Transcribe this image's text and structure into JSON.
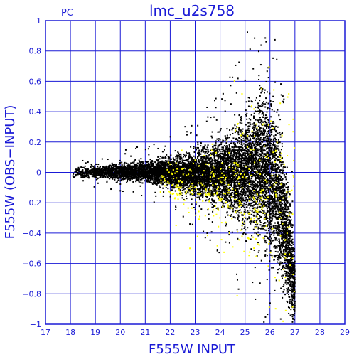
{
  "chart_data": {
    "type": "scatter",
    "title": "lmc_u2s758",
    "corner_label": "PC",
    "xlabel": "F555W INPUT",
    "ylabel": "F555W (OBS−INPUT)",
    "xlim": [
      17,
      29
    ],
    "ylim": [
      -1,
      1
    ],
    "x_ticks": [
      17,
      18,
      19,
      20,
      21,
      22,
      23,
      24,
      25,
      26,
      27,
      28,
      29
    ],
    "y_ticks": [
      -1,
      -0.8,
      -0.6,
      -0.4,
      -0.2,
      0,
      0.2,
      0.4,
      0.6,
      0.8,
      1
    ],
    "y_tick_labels": [
      "−1",
      "−0.8",
      "−0.6",
      "−0.4",
      "−0.2",
      "0",
      "0.2",
      "0.4",
      "0.6",
      "0.8",
      "1"
    ],
    "grid": true,
    "series": [
      {
        "color": "#000000",
        "envelope": [
          {
            "x": 18.1,
            "ylo": -0.02,
            "yhi": 0.03
          },
          {
            "x": 18.5,
            "ylo": -0.03,
            "yhi": 0.03
          },
          {
            "x": 19.0,
            "ylo": -0.03,
            "yhi": 0.03
          },
          {
            "x": 19.5,
            "ylo": -0.03,
            "yhi": 0.04
          },
          {
            "x": 20.0,
            "ylo": -0.04,
            "yhi": 0.04
          },
          {
            "x": 20.5,
            "ylo": -0.04,
            "yhi": 0.05
          },
          {
            "x": 21.0,
            "ylo": -0.05,
            "yhi": 0.05
          },
          {
            "x": 21.5,
            "ylo": -0.06,
            "yhi": 0.06
          },
          {
            "x": 22.0,
            "ylo": -0.07,
            "yhi": 0.07
          },
          {
            "x": 22.5,
            "ylo": -0.09,
            "yhi": 0.08
          },
          {
            "x": 23.0,
            "ylo": -0.11,
            "yhi": 0.1
          },
          {
            "x": 23.5,
            "ylo": -0.13,
            "yhi": 0.12
          },
          {
            "x": 24.0,
            "ylo": -0.16,
            "yhi": 0.15
          },
          {
            "x": 24.5,
            "ylo": -0.2,
            "yhi": 0.19
          },
          {
            "x": 25.0,
            "ylo": -0.25,
            "yhi": 0.26
          },
          {
            "x": 25.5,
            "ylo": -0.3,
            "yhi": 0.34
          },
          {
            "x": 25.9,
            "ylo": -0.35,
            "yhi": 0.38
          },
          {
            "x": 26.2,
            "ylo": -0.45,
            "yhi": 0.25
          },
          {
            "x": 26.5,
            "ylo": -0.6,
            "yhi": 0.05
          },
          {
            "x": 26.8,
            "ylo": -0.8,
            "yhi": -0.3
          },
          {
            "x": 27.0,
            "ylo": -0.95,
            "yhi": -0.6
          }
        ]
      },
      {
        "color": "#ffff00",
        "envelope": [
          {
            "x": 21.5,
            "ylo": -0.12,
            "yhi": 0.02
          },
          {
            "x": 22.5,
            "ylo": -0.18,
            "yhi": 0.04
          },
          {
            "x": 23.5,
            "ylo": -0.3,
            "yhi": 0.08
          },
          {
            "x": 24.5,
            "ylo": -0.4,
            "yhi": 0.15
          },
          {
            "x": 25.5,
            "ylo": -0.55,
            "yhi": 0.25
          },
          {
            "x": 26.2,
            "ylo": -0.85,
            "yhi": 0.4
          },
          {
            "x": 27.0,
            "ylo": -0.95,
            "yhi": 0.6
          }
        ]
      }
    ]
  }
}
